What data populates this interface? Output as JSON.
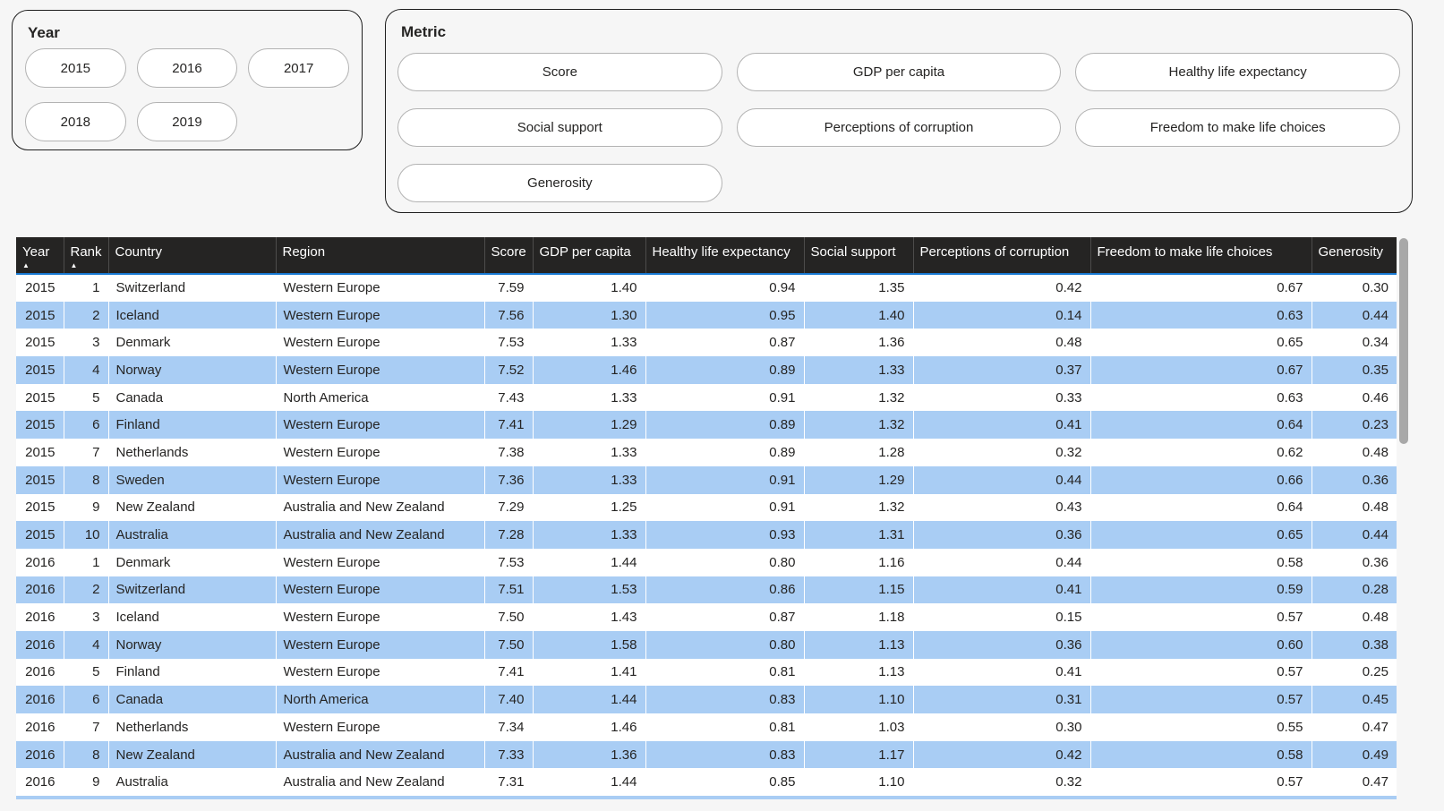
{
  "year_filter": {
    "title": "Year",
    "options": [
      "2015",
      "2016",
      "2017",
      "2018",
      "2019"
    ]
  },
  "metric_filter": {
    "title": "Metric",
    "options": [
      "Score",
      "GDP per capita",
      "Healthy life expectancy",
      "Social support",
      "Perceptions of corruption",
      "Freedom to make life choices",
      "Generosity"
    ]
  },
  "table": {
    "columns": [
      {
        "label": "Year",
        "sorted": true
      },
      {
        "label": "Rank",
        "sorted": true
      },
      {
        "label": "Country",
        "sorted": false
      },
      {
        "label": "Region",
        "sorted": false
      },
      {
        "label": "Score",
        "sorted": false
      },
      {
        "label": "GDP per capita",
        "sorted": false
      },
      {
        "label": "Healthy life expectancy",
        "sorted": false
      },
      {
        "label": "Social support",
        "sorted": false
      },
      {
        "label": "Perceptions of corruption",
        "sorted": false
      },
      {
        "label": "Freedom to make life choices",
        "sorted": false
      },
      {
        "label": "Generosity",
        "sorted": false
      }
    ],
    "rows": [
      [
        "2015",
        "1",
        "Switzerland",
        "Western Europe",
        "7.59",
        "1.40",
        "0.94",
        "1.35",
        "0.42",
        "0.67",
        "0.30"
      ],
      [
        "2015",
        "2",
        "Iceland",
        "Western Europe",
        "7.56",
        "1.30",
        "0.95",
        "1.40",
        "0.14",
        "0.63",
        "0.44"
      ],
      [
        "2015",
        "3",
        "Denmark",
        "Western Europe",
        "7.53",
        "1.33",
        "0.87",
        "1.36",
        "0.48",
        "0.65",
        "0.34"
      ],
      [
        "2015",
        "4",
        "Norway",
        "Western Europe",
        "7.52",
        "1.46",
        "0.89",
        "1.33",
        "0.37",
        "0.67",
        "0.35"
      ],
      [
        "2015",
        "5",
        "Canada",
        "North America",
        "7.43",
        "1.33",
        "0.91",
        "1.32",
        "0.33",
        "0.63",
        "0.46"
      ],
      [
        "2015",
        "6",
        "Finland",
        "Western Europe",
        "7.41",
        "1.29",
        "0.89",
        "1.32",
        "0.41",
        "0.64",
        "0.23"
      ],
      [
        "2015",
        "7",
        "Netherlands",
        "Western Europe",
        "7.38",
        "1.33",
        "0.89",
        "1.28",
        "0.32",
        "0.62",
        "0.48"
      ],
      [
        "2015",
        "8",
        "Sweden",
        "Western Europe",
        "7.36",
        "1.33",
        "0.91",
        "1.29",
        "0.44",
        "0.66",
        "0.36"
      ],
      [
        "2015",
        "9",
        "New Zealand",
        "Australia and New Zealand",
        "7.29",
        "1.25",
        "0.91",
        "1.32",
        "0.43",
        "0.64",
        "0.48"
      ],
      [
        "2015",
        "10",
        "Australia",
        "Australia and New Zealand",
        "7.28",
        "1.33",
        "0.93",
        "1.31",
        "0.36",
        "0.65",
        "0.44"
      ],
      [
        "2016",
        "1",
        "Denmark",
        "Western Europe",
        "7.53",
        "1.44",
        "0.80",
        "1.16",
        "0.44",
        "0.58",
        "0.36"
      ],
      [
        "2016",
        "2",
        "Switzerland",
        "Western Europe",
        "7.51",
        "1.53",
        "0.86",
        "1.15",
        "0.41",
        "0.59",
        "0.28"
      ],
      [
        "2016",
        "3",
        "Iceland",
        "Western Europe",
        "7.50",
        "1.43",
        "0.87",
        "1.18",
        "0.15",
        "0.57",
        "0.48"
      ],
      [
        "2016",
        "4",
        "Norway",
        "Western Europe",
        "7.50",
        "1.58",
        "0.80",
        "1.13",
        "0.36",
        "0.60",
        "0.38"
      ],
      [
        "2016",
        "5",
        "Finland",
        "Western Europe",
        "7.41",
        "1.41",
        "0.81",
        "1.13",
        "0.41",
        "0.57",
        "0.25"
      ],
      [
        "2016",
        "6",
        "Canada",
        "North America",
        "7.40",
        "1.44",
        "0.83",
        "1.10",
        "0.31",
        "0.57",
        "0.45"
      ],
      [
        "2016",
        "7",
        "Netherlands",
        "Western Europe",
        "7.34",
        "1.46",
        "0.81",
        "1.03",
        "0.30",
        "0.55",
        "0.47"
      ],
      [
        "2016",
        "8",
        "New Zealand",
        "Australia and New Zealand",
        "7.33",
        "1.36",
        "0.83",
        "1.17",
        "0.42",
        "0.58",
        "0.49"
      ],
      [
        "2016",
        "9",
        "Australia",
        "Australia and New Zealand",
        "7.31",
        "1.44",
        "0.85",
        "1.10",
        "0.32",
        "0.57",
        "0.47"
      ]
    ],
    "sort_icon": "▲"
  },
  "colors": {
    "header_bg": "#252423",
    "header_underline": "#1778d1",
    "band_blue": "#a9cdf4",
    "page_bg": "#f6f6f6",
    "button_border": "#b3b3b3",
    "scrollbar": "#a8a8a8",
    "text": "#252423"
  }
}
